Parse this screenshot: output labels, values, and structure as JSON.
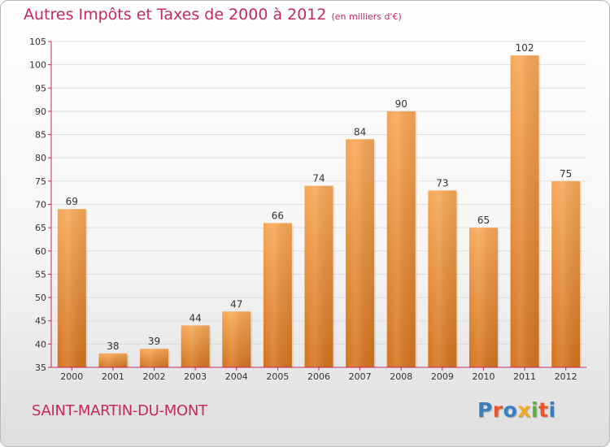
{
  "title": "Autres Impôts et Taxes de 2000 à 2012",
  "unit": "(en milliers d'€)",
  "commune": "SAINT-MARTIN-DU-MONT",
  "logo": {
    "text": "Proxiti",
    "letters": [
      {
        "char": "P",
        "color": "#3a7fc4"
      },
      {
        "char": "r",
        "color": "#e8582a"
      },
      {
        "char": "o",
        "color": "#3a7fc4"
      },
      {
        "char": "x",
        "color": "#f2a71e"
      },
      {
        "char": "i",
        "color": "#58b23c"
      },
      {
        "char": "t",
        "color": "#e8582a"
      },
      {
        "char": "i",
        "color": "#3a7fc4"
      }
    ]
  },
  "colors": {
    "accent": "#c42860",
    "bar_light": "#f7a857",
    "bar_dark": "#d4731d",
    "axis": "#c42860",
    "grid": "#dddddd"
  },
  "chart_data": {
    "type": "bar",
    "title": "Autres Impôts et Taxes de 2000 à 2012",
    "xlabel": "",
    "ylabel": "",
    "categories": [
      "2000",
      "2001",
      "2002",
      "2003",
      "2004",
      "2005",
      "2006",
      "2007",
      "2008",
      "2009",
      "2010",
      "2011",
      "2012"
    ],
    "values": [
      69,
      38,
      39,
      44,
      47,
      66,
      74,
      84,
      90,
      73,
      65,
      102,
      75
    ],
    "ylim": [
      35,
      105
    ],
    "yticks": [
      35,
      40,
      45,
      50,
      55,
      60,
      65,
      70,
      75,
      80,
      85,
      90,
      95,
      100,
      105
    ],
    "grid": true,
    "legend": "none"
  }
}
